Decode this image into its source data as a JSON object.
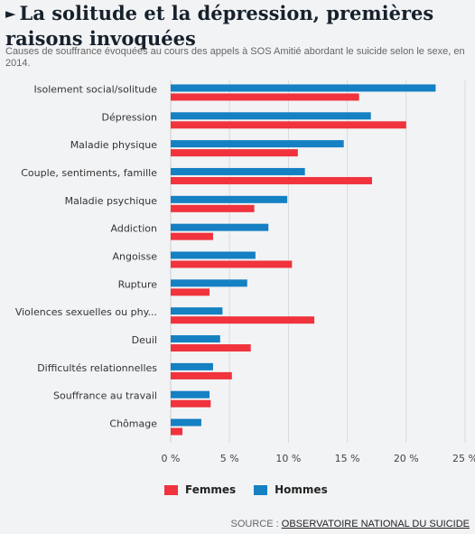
{
  "header": {
    "title": "La solitude et la dépression, premières raisons invoquées",
    "subtitle": "Causes de souffrance évoquées au cours des appels à SOS Amitié abordant le suicide selon le sexe, en 2014."
  },
  "colors": {
    "femmes": "#f0333c",
    "hommes": "#1580c2",
    "grid": "#d8dade",
    "axis": "#c9ccd0",
    "text": "#333333"
  },
  "chart_data": {
    "type": "bar",
    "orientation": "horizontal",
    "categories": [
      "Isolement social/solitude",
      "Dépression",
      "Maladie physique",
      "Couple, sentiments, famille",
      "Maladie psychique",
      "Addiction",
      "Angoisse",
      "Rupture",
      "Violences sexuelles ou phy...",
      "Deuil",
      "Difficultés relationnelles",
      "Souffrance au travail",
      "Chômage"
    ],
    "series": [
      {
        "name": "Hommes",
        "color": "#1580c2",
        "values": [
          22.5,
          17.0,
          14.7,
          11.4,
          9.9,
          8.3,
          7.2,
          6.5,
          4.4,
          4.2,
          3.6,
          3.3,
          2.6
        ]
      },
      {
        "name": "Femmes",
        "color": "#f0333c",
        "values": [
          16.0,
          20.0,
          10.8,
          17.1,
          7.1,
          3.6,
          10.3,
          3.3,
          12.2,
          6.8,
          5.2,
          3.4,
          1.0
        ]
      }
    ],
    "xlim": [
      0,
      25
    ],
    "x_ticks": [
      "0 %",
      "5 %",
      "10 %",
      "15 %",
      "20 %",
      "25 %"
    ],
    "grid": "vertical",
    "legend": "bottom"
  },
  "source": {
    "label": "SOURCE :",
    "link": "OBSERVATOIRE NATIONAL DU SUICIDE"
  }
}
